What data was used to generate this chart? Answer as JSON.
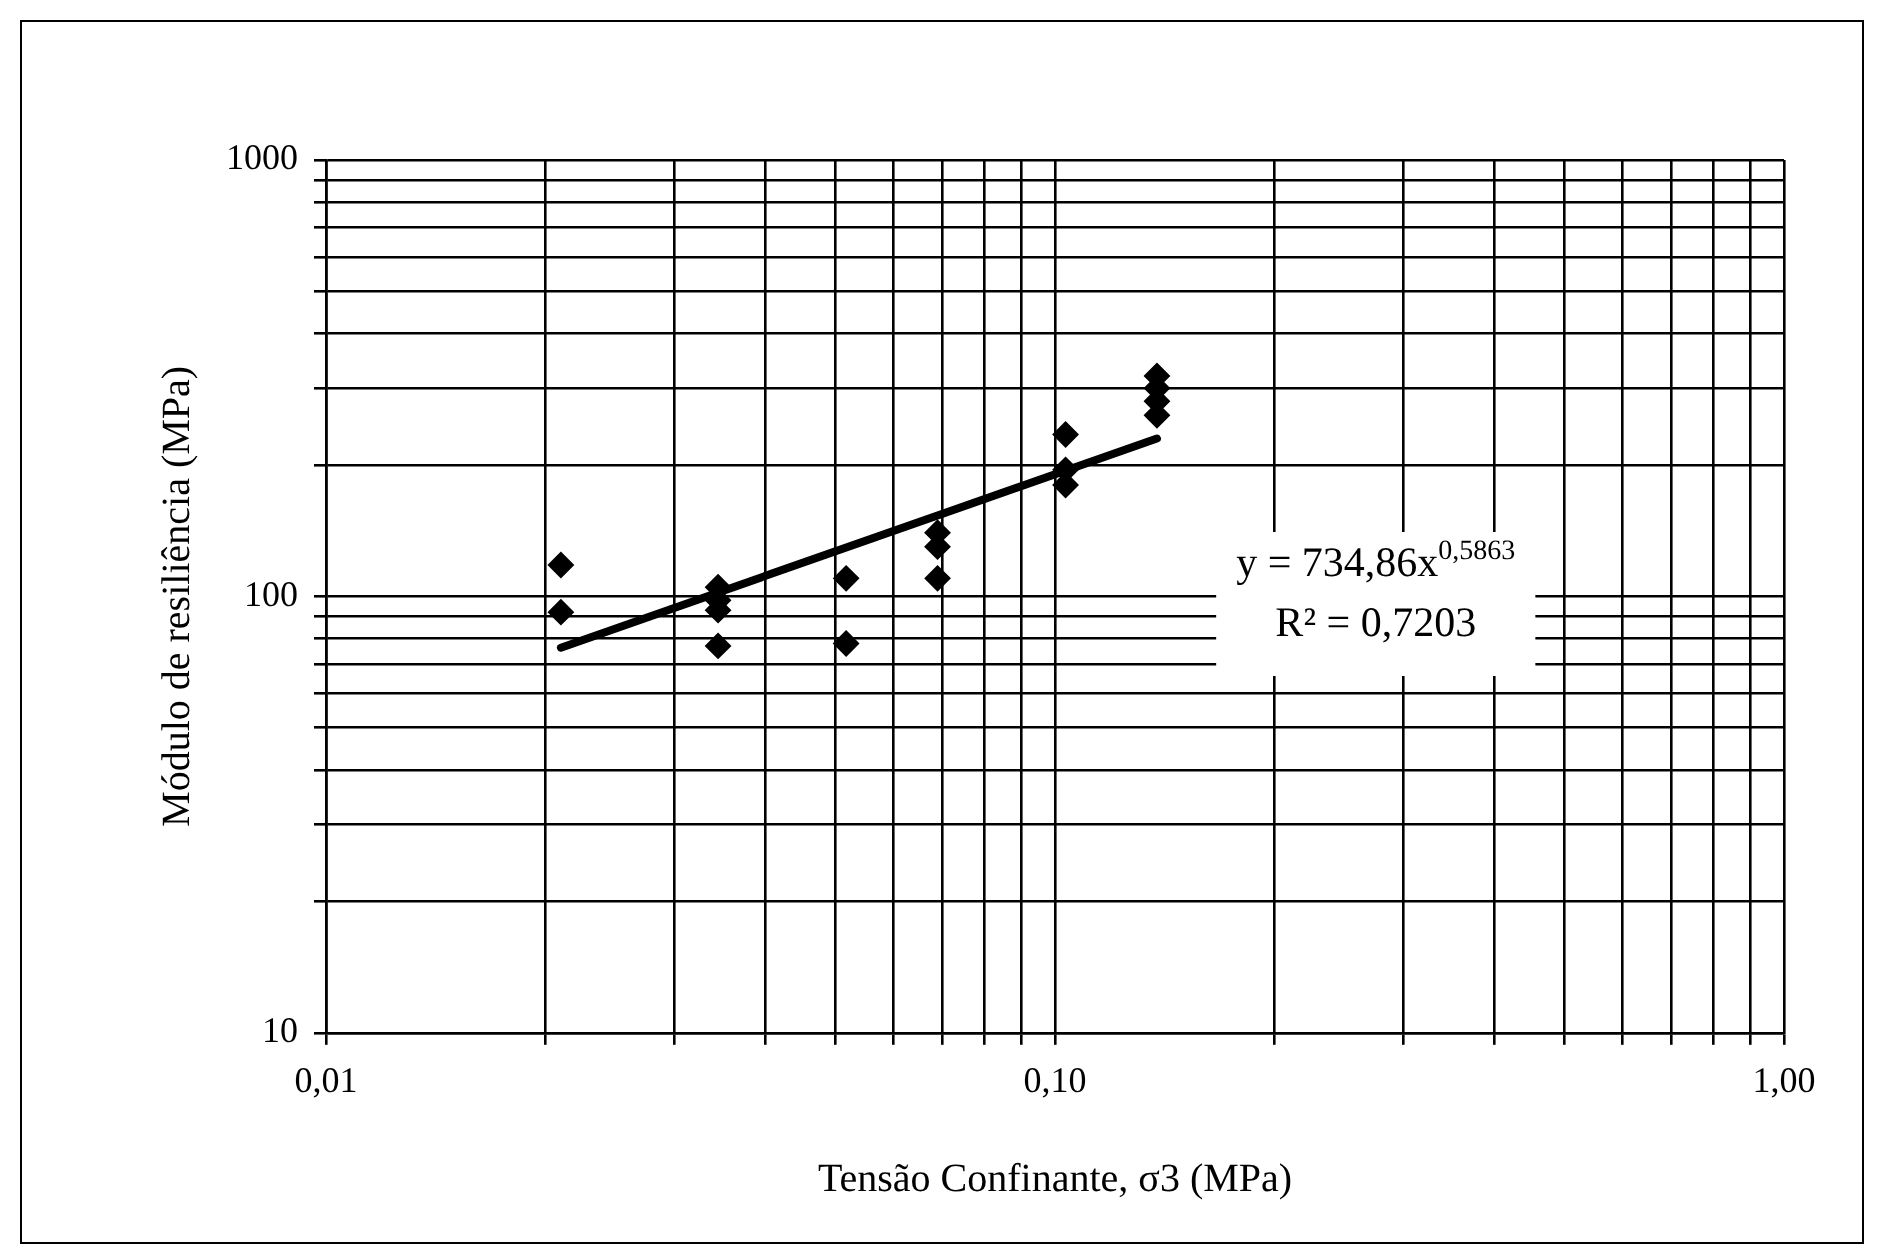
{
  "chart_data": {
    "type": "scatter",
    "xlabel": "Tensão Confinante, σ3 (MPa)",
    "ylabel": "Módulo de resiliência (MPa)",
    "log": "xy",
    "grid": true,
    "legend": false,
    "marker": "diamond",
    "xlim": [
      0.01,
      1
    ],
    "ylim": [
      10,
      1000
    ],
    "xticks": [
      {
        "value": 0.01,
        "label": "0,01"
      },
      {
        "value": 0.02,
        "label": null
      },
      {
        "value": 0.03,
        "label": null
      },
      {
        "value": 0.04,
        "label": null
      },
      {
        "value": 0.05,
        "label": null
      },
      {
        "value": 0.06,
        "label": null
      },
      {
        "value": 0.07,
        "label": null
      },
      {
        "value": 0.08,
        "label": null
      },
      {
        "value": 0.09,
        "label": null
      },
      {
        "value": 0.1,
        "label": "0,10"
      },
      {
        "value": 0.2,
        "label": null
      },
      {
        "value": 0.3,
        "label": null
      },
      {
        "value": 0.4,
        "label": null
      },
      {
        "value": 0.5,
        "label": null
      },
      {
        "value": 0.6,
        "label": null
      },
      {
        "value": 0.7,
        "label": null
      },
      {
        "value": 0.8,
        "label": null
      },
      {
        "value": 0.9,
        "label": null
      },
      {
        "value": 1,
        "label": "1,00"
      }
    ],
    "yticks": [
      10,
      {
        "value": 20,
        "label": null
      },
      {
        "value": 30,
        "label": null
      },
      {
        "value": 40,
        "label": null
      },
      {
        "value": 50,
        "label": null
      },
      {
        "value": 60,
        "label": null
      },
      {
        "value": 70,
        "label": null
      },
      {
        "value": 80,
        "label": null
      },
      {
        "value": 90,
        "label": null
      },
      100,
      {
        "value": 200,
        "label": null
      },
      {
        "value": 300,
        "label": null
      },
      {
        "value": 400,
        "label": null
      },
      {
        "value": 500,
        "label": null
      },
      {
        "value": 600,
        "label": null
      },
      {
        "value": 700,
        "label": null
      },
      {
        "value": 800,
        "label": null
      },
      {
        "value": 900,
        "label": null
      },
      1000
    ],
    "series": [
      {
        "color": "#000000",
        "x": [
          0.021,
          0.021,
          0.0345,
          0.0345,
          0.0345,
          0.0345,
          0.0517,
          0.0517,
          0.069,
          0.069,
          0.069,
          0.1034,
          0.1034,
          0.1034,
          0.138,
          0.138,
          0.138,
          0.138
        ],
        "values": [
          118,
          92,
          105,
          98,
          93,
          77,
          110,
          78,
          140,
          130,
          110,
          235,
          195,
          180,
          320,
          300,
          280,
          260
        ]
      },
      {
        "type": "line",
        "color": "#000000",
        "marker": "none",
        "line_style": "solid",
        "x": [
          0.021,
          0.138
        ],
        "values": [
          76.3,
          230
        ]
      }
    ],
    "annotations": [
      "y = 734,86x$^{0,5863}$",
      "R² = 0,7203"
    ]
  }
}
